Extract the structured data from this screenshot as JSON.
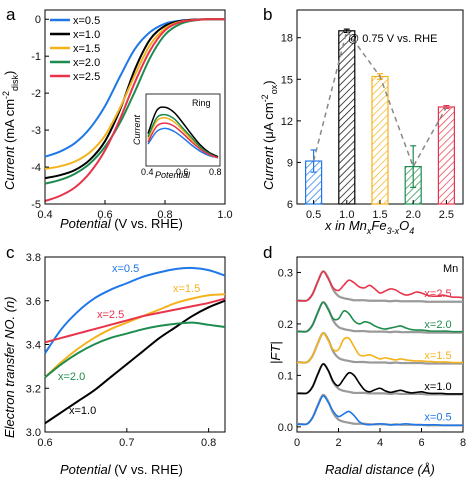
{
  "chart_data": [
    {
      "panel": "a",
      "type": "line",
      "xlabel_prefix": "Potential",
      "xlabel_suffix": " (V vs. RHE)",
      "ylabel_prefix": "Current",
      "ylabel_suffix": " (mA cm",
      "ylabel_sup": "-2",
      "ylabel_sub": "disk",
      "ylabel_end": ")",
      "xlim": [
        0.4,
        1.0
      ],
      "ylim": [
        -5,
        0.25
      ],
      "xticks": [
        "0.4",
        "0.6",
        "0.8",
        "1.0"
      ],
      "yticks": [
        "0",
        "-1",
        "-2",
        "-3",
        "-4",
        "-5"
      ],
      "series": [
        {
          "name": "x=0.5",
          "color": "#1f77e8",
          "x": [
            0.4,
            0.45,
            0.5,
            0.55,
            0.6,
            0.65,
            0.7,
            0.75,
            0.8,
            0.85,
            0.9,
            0.95,
            1.0
          ],
          "y": [
            -3.72,
            -3.58,
            -3.35,
            -2.95,
            -2.35,
            -1.55,
            -0.8,
            -0.35,
            -0.12,
            -0.04,
            -0.01,
            0.0,
            0.0
          ]
        },
        {
          "name": "x=1.0",
          "color": "#000000",
          "x": [
            0.4,
            0.45,
            0.5,
            0.55,
            0.6,
            0.65,
            0.7,
            0.75,
            0.8,
            0.85,
            0.9,
            0.95,
            1.0
          ],
          "y": [
            -4.3,
            -4.22,
            -4.08,
            -3.8,
            -3.3,
            -2.45,
            -1.35,
            -0.55,
            -0.18,
            -0.05,
            -0.01,
            0.0,
            0.0
          ]
        },
        {
          "name": "x=1.5",
          "color": "#f5b21a",
          "x": [
            0.4,
            0.45,
            0.5,
            0.55,
            0.6,
            0.65,
            0.7,
            0.75,
            0.8,
            0.85,
            0.9,
            0.95,
            1.0
          ],
          "y": [
            -4.05,
            -3.98,
            -3.85,
            -3.6,
            -3.15,
            -2.4,
            -1.5,
            -0.7,
            -0.25,
            -0.07,
            -0.02,
            0.0,
            0.0
          ]
        },
        {
          "name": "x=2.0",
          "color": "#1e8c4e",
          "x": [
            0.4,
            0.45,
            0.5,
            0.55,
            0.6,
            0.65,
            0.7,
            0.75,
            0.8,
            0.85,
            0.9,
            0.95,
            1.0
          ],
          "y": [
            -4.45,
            -4.35,
            -4.18,
            -3.9,
            -3.45,
            -2.8,
            -1.95,
            -1.05,
            -0.42,
            -0.13,
            -0.03,
            0.0,
            0.0
          ]
        },
        {
          "name": "x=2.5",
          "color": "#e8334a",
          "x": [
            0.4,
            0.45,
            0.5,
            0.55,
            0.6,
            0.65,
            0.7,
            0.75,
            0.8,
            0.85,
            0.9,
            0.95,
            1.0
          ],
          "y": [
            -4.92,
            -4.78,
            -4.55,
            -4.15,
            -3.55,
            -2.7,
            -1.7,
            -0.85,
            -0.3,
            -0.08,
            -0.02,
            0.0,
            0.0
          ]
        }
      ],
      "inset": {
        "title": "Ring",
        "xlabel": "Potential",
        "ylabel": "Current",
        "xlim": [
          0.4,
          0.8
        ],
        "xticks": [
          "0.4",
          "0.6",
          "0.8"
        ],
        "series": [
          {
            "name": "x=0.5",
            "color": "#1f77e8",
            "x": [
              0.4,
              0.45,
              0.5,
              0.55,
              0.6,
              0.65,
              0.7,
              0.75,
              0.8
            ],
            "y": [
              0.18,
              0.3,
              0.33,
              0.3,
              0.24,
              0.17,
              0.11,
              0.07,
              0.05
            ]
          },
          {
            "name": "x=1.0",
            "color": "#000000",
            "x": [
              0.4,
              0.45,
              0.5,
              0.55,
              0.6,
              0.65,
              0.7,
              0.75,
              0.8
            ],
            "y": [
              0.28,
              0.5,
              0.53,
              0.48,
              0.38,
              0.27,
              0.17,
              0.1,
              0.06
            ]
          },
          {
            "name": "x=1.5",
            "color": "#f5b21a",
            "x": [
              0.4,
              0.45,
              0.5,
              0.55,
              0.6,
              0.65,
              0.7,
              0.75,
              0.8
            ],
            "y": [
              0.23,
              0.4,
              0.43,
              0.39,
              0.31,
              0.22,
              0.14,
              0.08,
              0.05
            ]
          },
          {
            "name": "x=2.0",
            "color": "#1e8c4e",
            "x": [
              0.4,
              0.45,
              0.5,
              0.55,
              0.6,
              0.65,
              0.7,
              0.75,
              0.8
            ],
            "y": [
              0.25,
              0.43,
              0.46,
              0.42,
              0.33,
              0.24,
              0.15,
              0.09,
              0.05
            ]
          },
          {
            "name": "x=2.5",
            "color": "#e8334a",
            "x": [
              0.4,
              0.45,
              0.5,
              0.55,
              0.6,
              0.65,
              0.7,
              0.75,
              0.8
            ],
            "y": [
              0.2,
              0.35,
              0.38,
              0.35,
              0.28,
              0.2,
              0.13,
              0.08,
              0.05
            ]
          }
        ]
      }
    },
    {
      "panel": "b",
      "type": "bar",
      "annotation": "@ 0.75 V vs. RHE",
      "xlabel_parts": [
        "x in Mn",
        "x",
        "Fe",
        "3-x",
        "O",
        "4"
      ],
      "ylabel_prefix": "Current",
      "ylabel_suffix": " (μA cm",
      "ylabel_sup": "-2",
      "ylabel_sub": "ox",
      "ylabel_end": ")",
      "categories": [
        "0.5",
        "1.0",
        "1.5",
        "2.0",
        "2.5"
      ],
      "values": [
        9.1,
        18.5,
        15.2,
        8.7,
        13.0
      ],
      "errors": [
        0.8,
        0.12,
        0.2,
        1.5,
        0.1
      ],
      "colors": [
        "#1f77e8",
        "#000000",
        "#f5b21a",
        "#1e8c4e",
        "#e8334a"
      ],
      "ylim": [
        6,
        20
      ],
      "yticks": [
        "6",
        "9",
        "12",
        "15",
        "18"
      ]
    },
    {
      "panel": "c",
      "type": "line",
      "xlabel_prefix": "Potential",
      "xlabel_suffix": " (V vs. RHE)",
      "ylabel": "Electron transfer NO. (n)",
      "xlim": [
        0.6,
        0.82
      ],
      "ylim": [
        3.0,
        3.8
      ],
      "xticks": [
        "0.6",
        "0.7",
        "0.8"
      ],
      "yticks": [
        "3.0",
        "3.2",
        "3.4",
        "3.6",
        "3.8"
      ],
      "series": [
        {
          "name": "x=0.5",
          "color": "#1f77e8",
          "x": [
            0.6,
            0.62,
            0.64,
            0.66,
            0.68,
            0.7,
            0.72,
            0.74,
            0.76,
            0.78,
            0.8,
            0.82
          ],
          "y": [
            3.36,
            3.47,
            3.55,
            3.61,
            3.65,
            3.68,
            3.71,
            3.73,
            3.745,
            3.75,
            3.74,
            3.715
          ]
        },
        {
          "name": "x=1.0",
          "color": "#000000",
          "x": [
            0.6,
            0.62,
            0.64,
            0.66,
            0.68,
            0.7,
            0.72,
            0.74,
            0.76,
            0.78,
            0.8,
            0.82
          ],
          "y": [
            3.04,
            3.09,
            3.14,
            3.19,
            3.25,
            3.31,
            3.37,
            3.43,
            3.48,
            3.53,
            3.57,
            3.6
          ]
        },
        {
          "name": "x=1.5",
          "color": "#f5b21a",
          "x": [
            0.6,
            0.62,
            0.64,
            0.66,
            0.68,
            0.7,
            0.72,
            0.74,
            0.76,
            0.78,
            0.8,
            0.82
          ],
          "y": [
            3.25,
            3.32,
            3.38,
            3.43,
            3.47,
            3.5,
            3.53,
            3.56,
            3.59,
            3.61,
            3.625,
            3.63
          ]
        },
        {
          "name": "x=2.0",
          "color": "#1e8c4e",
          "x": [
            0.6,
            0.62,
            0.64,
            0.66,
            0.68,
            0.7,
            0.72,
            0.74,
            0.76,
            0.78,
            0.8,
            0.82
          ],
          "y": [
            3.25,
            3.31,
            3.36,
            3.4,
            3.43,
            3.45,
            3.47,
            3.485,
            3.495,
            3.5,
            3.49,
            3.48
          ]
        },
        {
          "name": "x=2.5",
          "color": "#e8334a",
          "x": [
            0.6,
            0.62,
            0.64,
            0.66,
            0.68,
            0.7,
            0.72,
            0.74,
            0.76,
            0.78,
            0.8,
            0.82
          ],
          "y": [
            3.41,
            3.43,
            3.45,
            3.47,
            3.49,
            3.51,
            3.53,
            3.545,
            3.56,
            3.575,
            3.59,
            3.61
          ]
        }
      ],
      "labels": [
        "x=0.5",
        "x=1.5",
        "x=2.5",
        "x=2.0",
        "x=1.0"
      ]
    },
    {
      "panel": "d",
      "type": "line",
      "xlabel": "Radial distance (Å)",
      "ylabel": "|FT|",
      "corner_label": "Mn",
      "xlim": [
        0,
        8
      ],
      "ylim": [
        -0.01,
        0.33
      ],
      "xticks": [
        "0",
        "2",
        "4",
        "6",
        "8"
      ],
      "yticks": [
        "0.0",
        "0.1",
        "0.2",
        "0.3"
      ],
      "offsets": [
        0.0,
        0.06,
        0.12,
        0.18,
        0.24
      ],
      "x": [
        0,
        0.25,
        0.5,
        0.75,
        1.0,
        1.25,
        1.5,
        1.75,
        2.0,
        2.25,
        2.5,
        2.75,
        3.0,
        3.25,
        3.5,
        3.75,
        4.0,
        4.25,
        4.5,
        4.75,
        5.0,
        5.25,
        5.5,
        5.75,
        6.0,
        6.25,
        6.5,
        6.75,
        7.0,
        7.25,
        7.5,
        7.75,
        8.0
      ],
      "reference": [
        0.006,
        0.005,
        0.006,
        0.018,
        0.042,
        0.062,
        0.05,
        0.026,
        0.014,
        0.01,
        0.008,
        0.006,
        0.006,
        0.006,
        0.005,
        0.005,
        0.005,
        0.005,
        0.004,
        0.005,
        0.004,
        0.004,
        0.004,
        0.004,
        0.004,
        0.003,
        0.003,
        0.003,
        0.003,
        0.003,
        0.003,
        0.003,
        0.003
      ],
      "series": [
        {
          "name": "x=0.5",
          "color": "#1f77e8",
          "y": [
            0.005,
            0.005,
            0.006,
            0.018,
            0.04,
            0.06,
            0.048,
            0.03,
            0.02,
            0.025,
            0.03,
            0.022,
            0.01,
            0.005,
            0.004,
            0.005,
            0.006,
            0.005,
            0.004,
            0.004,
            0.005,
            0.006,
            0.005,
            0.004,
            0.004,
            0.004,
            0.004,
            0.004,
            0.003,
            0.003,
            0.003,
            0.003,
            0.003
          ]
        },
        {
          "name": "x=1.0",
          "color": "#000000",
          "y": [
            0.005,
            0.005,
            0.006,
            0.018,
            0.042,
            0.062,
            0.05,
            0.028,
            0.02,
            0.033,
            0.045,
            0.04,
            0.025,
            0.012,
            0.008,
            0.012,
            0.015,
            0.01,
            0.007,
            0.009,
            0.011,
            0.008,
            0.006,
            0.007,
            0.008,
            0.006,
            0.005,
            0.005,
            0.005,
            0.004,
            0.004,
            0.004,
            0.004
          ]
        },
        {
          "name": "x=1.5",
          "color": "#f5b21a",
          "y": [
            0.005,
            0.005,
            0.006,
            0.018,
            0.042,
            0.062,
            0.048,
            0.03,
            0.03,
            0.05,
            0.052,
            0.036,
            0.02,
            0.018,
            0.02,
            0.016,
            0.012,
            0.014,
            0.012,
            0.01,
            0.012,
            0.01,
            0.009,
            0.008,
            0.008,
            0.007,
            0.007,
            0.006,
            0.006,
            0.006,
            0.005,
            0.005,
            0.005
          ]
        },
        {
          "name": "x=2.0",
          "color": "#1e8c4e",
          "y": [
            0.005,
            0.005,
            0.006,
            0.018,
            0.042,
            0.062,
            0.048,
            0.03,
            0.03,
            0.045,
            0.04,
            0.026,
            0.02,
            0.024,
            0.022,
            0.016,
            0.012,
            0.01,
            0.012,
            0.014,
            0.016,
            0.012,
            0.009,
            0.008,
            0.008,
            0.007,
            0.006,
            0.006,
            0.006,
            0.006,
            0.005,
            0.005,
            0.005
          ]
        },
        {
          "name": "x=2.5",
          "color": "#e8334a",
          "y": [
            0.005,
            0.005,
            0.006,
            0.018,
            0.042,
            0.062,
            0.048,
            0.03,
            0.025,
            0.035,
            0.045,
            0.04,
            0.032,
            0.03,
            0.035,
            0.028,
            0.02,
            0.024,
            0.028,
            0.026,
            0.02,
            0.016,
            0.018,
            0.022,
            0.02,
            0.016,
            0.014,
            0.014,
            0.016,
            0.014,
            0.012,
            0.012,
            0.011
          ]
        }
      ]
    }
  ],
  "panel_letters": [
    "a",
    "b",
    "c",
    "d"
  ]
}
